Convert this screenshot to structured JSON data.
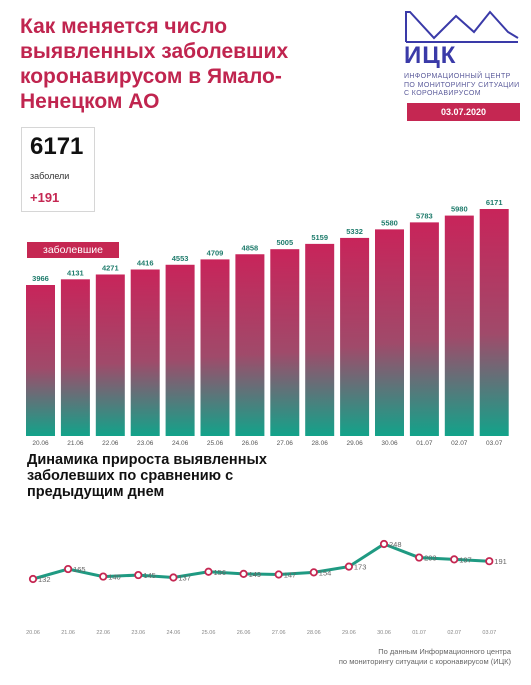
{
  "header": {
    "title": "Как меняется число выявленных заболевших коронавирусом в Ямало-Ненецком АО"
  },
  "logo": {
    "name": "ИЦК",
    "subtitle_lines": [
      "ИНФОРМАЦИОННЫЙ ЦЕНТР",
      "ПО МОНИТОРИНГУ СИТУАЦИИ",
      "С КОРОНАВИРУСОМ"
    ],
    "date": "03.07.2020"
  },
  "summary": {
    "value": "6171",
    "label": "заболели",
    "delta": "+191"
  },
  "colors": {
    "brand": "#c52752",
    "bar_top": "#c8245a",
    "bar_bottom": "#12a38a",
    "line": "#1f9a82",
    "marker": "#c52752",
    "logo": "#3a3aa8"
  },
  "chart_data": [
    {
      "type": "bar",
      "legend": "заболевшие",
      "categories": [
        "20.06",
        "21.06",
        "22.06",
        "23.06",
        "24.06",
        "25.06",
        "26.06",
        "27.06",
        "28.06",
        "29.06",
        "30.06",
        "01.07",
        "02.07",
        "03.07"
      ],
      "values": [
        3966,
        4131,
        4271,
        4416,
        4553,
        4709,
        4858,
        5005,
        5159,
        5332,
        5580,
        5783,
        5980,
        6171
      ],
      "grid": false
    },
    {
      "type": "line",
      "title": "Динамика прироста выявленных заболевших по сравнению с предыдущим днем",
      "categories": [
        "20.06",
        "21.06",
        "22.06",
        "23.06",
        "24.06",
        "25.06",
        "26.06",
        "27.06",
        "28.06",
        "29.06",
        "30.06",
        "01.07",
        "02.07",
        "03.07"
      ],
      "values": [
        132,
        165,
        140,
        145,
        137,
        156,
        149,
        147,
        154,
        173,
        248,
        203,
        197,
        191
      ],
      "grid": false
    }
  ],
  "footer": {
    "line1": "По данным Информационного центра",
    "line2": "по мониторингу ситуации с коронавирусом (ИЦК)"
  }
}
